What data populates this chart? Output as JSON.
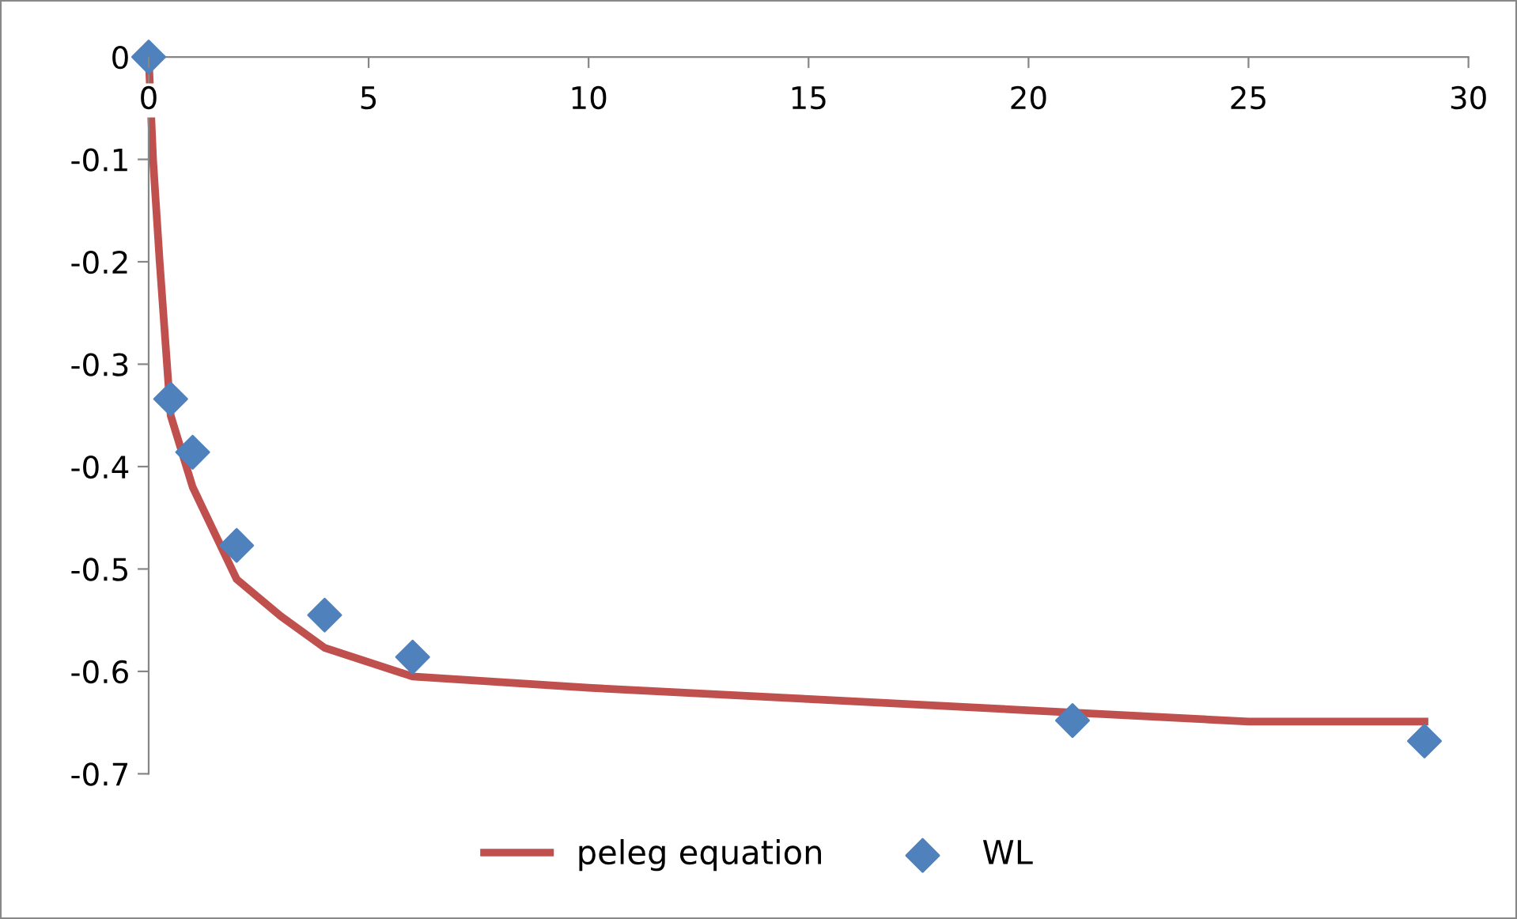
{
  "chart_data": {
    "type": "scatter",
    "xlim": [
      0,
      30
    ],
    "xticks": [
      0,
      5,
      10,
      15,
      20,
      25,
      30
    ],
    "ylim": [
      -0.7,
      0
    ],
    "yticks": [
      0,
      -0.1,
      -0.2,
      -0.3,
      -0.4,
      -0.5,
      -0.6,
      -0.7
    ],
    "grid": false,
    "legend": "bottom",
    "series": [
      {
        "name": "peleg equation",
        "type": "line",
        "color": "#c0504d",
        "marker": "none",
        "line_style": "solid",
        "x": [
          0,
          0.1,
          0.25,
          0.5,
          1,
          2,
          3,
          4,
          6,
          10,
          15,
          25,
          29
        ],
        "values": [
          0,
          -0.1,
          -0.2,
          -0.35,
          -0.42,
          -0.51,
          -0.546,
          -0.577,
          -0.605,
          -0.616,
          -0.627,
          -0.649,
          -0.649
        ]
      },
      {
        "name": "WL",
        "color": "#4f81bd",
        "marker": "diamond",
        "x": [
          0,
          0.5,
          1,
          2,
          4,
          6,
          21,
          29
        ],
        "values": [
          0,
          -0.334,
          -0.386,
          -0.477,
          -0.545,
          -0.586,
          -0.648,
          -0.668
        ]
      }
    ]
  }
}
